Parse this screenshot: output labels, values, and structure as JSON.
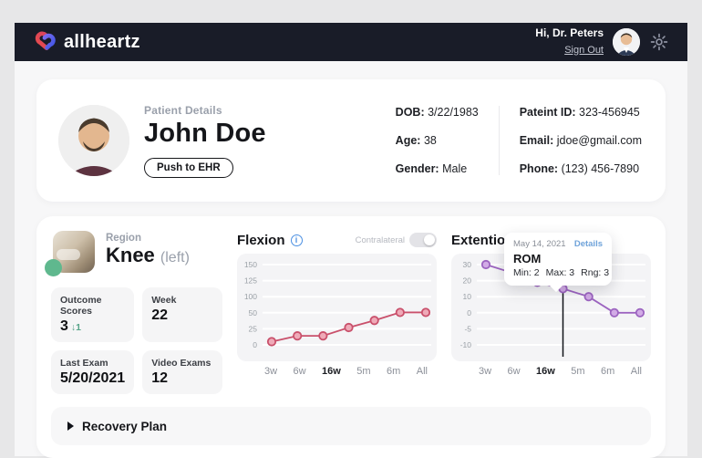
{
  "header": {
    "brand": "allheartz",
    "greeting": "Hi, Dr. Peters",
    "sign_out": "Sign Out"
  },
  "patient": {
    "section_label": "Patient Details",
    "name": "John Doe",
    "push_button": "Push to EHR",
    "fields_left": [
      {
        "label": "DOB:",
        "value": "3/22/1983"
      },
      {
        "label": "Age:",
        "value": "38"
      },
      {
        "label": "Gender:",
        "value": "Male"
      }
    ],
    "fields_right": [
      {
        "label": "Pateint ID:",
        "value": "323-456945"
      },
      {
        "label": "Email:",
        "value": "jdoe@gmail.com"
      },
      {
        "label": "Phone:",
        "value": "(123) 456-7890"
      }
    ]
  },
  "region": {
    "label": "Region",
    "name": "Knee",
    "side": "(left)"
  },
  "stats": [
    {
      "label": "Outcome Scores",
      "value": "3",
      "delta": "↓1"
    },
    {
      "label": "Week",
      "value": "22"
    },
    {
      "label": "Last Exam",
      "value": "5/20/2021"
    },
    {
      "label": "Video Exams",
      "value": "12"
    }
  ],
  "chart_data": [
    {
      "type": "line",
      "title": "Flexion",
      "x_ticks": [
        "3w",
        "6w",
        "16w",
        "5m",
        "6m",
        "All"
      ],
      "highlight_tick": "16w",
      "y_ticks": [
        150,
        125,
        100,
        50,
        25,
        0
      ],
      "values": [
        5,
        14,
        14,
        27,
        38,
        51,
        51
      ],
      "line_color": "#c9506b",
      "marker_fill": "#efaab8",
      "toggle_label": "Contralateral",
      "toggle_on": false,
      "grid": true,
      "legend": "none"
    },
    {
      "type": "line",
      "title": "Extention",
      "x_ticks": [
        "3w",
        "6w",
        "16w",
        "5m",
        "6m",
        "All"
      ],
      "highlight_tick": "16w",
      "y_ticks": [
        30,
        20,
        10,
        0,
        -5,
        -10
      ],
      "values": [
        30,
        25,
        19,
        15,
        10,
        0,
        0
      ],
      "selected_index": 3,
      "line_color": "#9c64c0",
      "marker_fill": "#d2abe6",
      "grid": true,
      "legend": "none"
    }
  ],
  "tooltip": {
    "date": "May 14, 2021",
    "details_link": "Details",
    "title": "ROM",
    "metrics": [
      {
        "label": "Min:",
        "value": "2"
      },
      {
        "label": "Max:",
        "value": "3"
      },
      {
        "label": "Rng:",
        "value": "3"
      }
    ]
  },
  "recovery": {
    "label": "Recovery Plan"
  },
  "icons": {
    "info_glyph": "i"
  },
  "colors": {
    "header_bg": "#191c28",
    "flexion_line": "#c9506b",
    "extension_line": "#9c64c0",
    "delta_teal": "#57a489",
    "link_blue": "#6fa3da",
    "info_blue": "#4a8fe2",
    "status_green": "#5fb88e"
  }
}
